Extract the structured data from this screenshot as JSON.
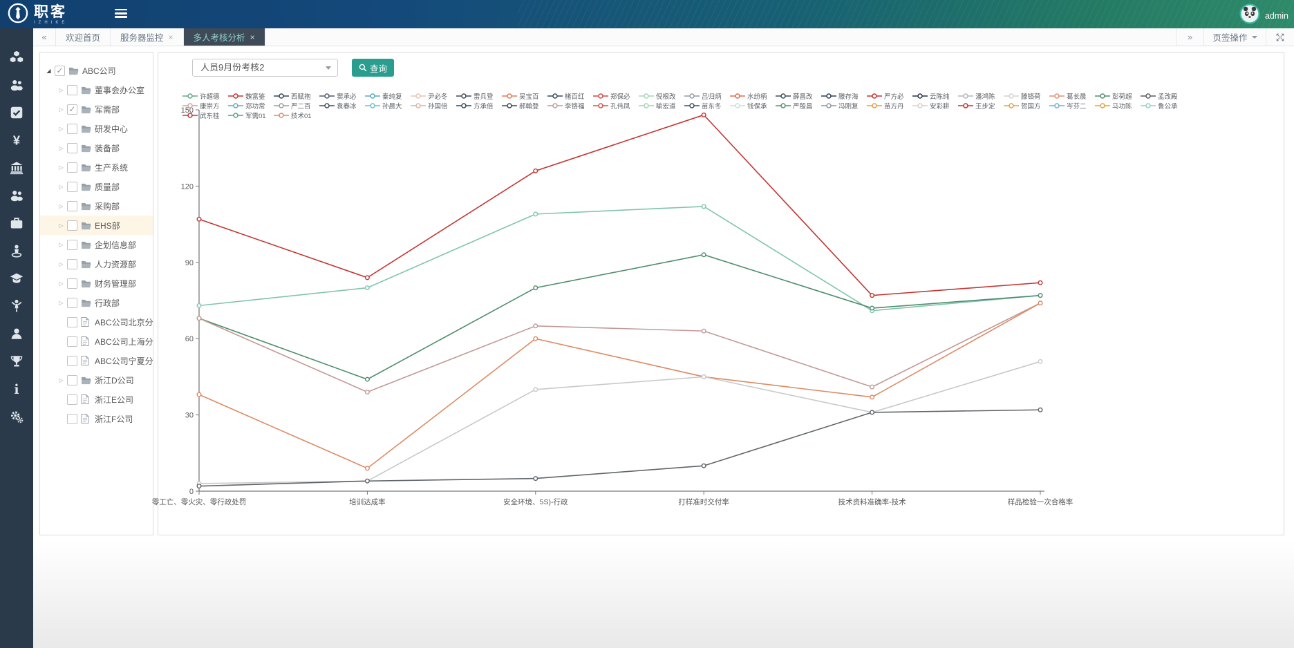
{
  "navbar": {
    "logo_text": "职客",
    "logo_sub": "IZHIKE",
    "username": "admin"
  },
  "tabbar": {
    "back_label": "«",
    "forward_label": "»",
    "tabs": [
      {
        "label": "欢迎首页",
        "closable": false,
        "active": false
      },
      {
        "label": "服务器监控",
        "closable": true,
        "active": false
      },
      {
        "label": "多人考核分析",
        "closable": true,
        "active": true
      }
    ],
    "operations_label": "页签操作"
  },
  "sidebar": {
    "icons": [
      "modules-icon",
      "team-icon",
      "tasks-icon",
      "finance-icon",
      "organization-icon",
      "members-icon",
      "briefcase-icon",
      "street-view-icon",
      "training-icon",
      "activity-icon",
      "user-icon",
      "trophy-icon",
      "info-icon",
      "settings-icon"
    ]
  },
  "tree": {
    "items": [
      {
        "label": "ABC公司",
        "type": "folder",
        "arrow": "expanded",
        "checked": true,
        "highlighted": false,
        "level": 0
      },
      {
        "label": "董事会办公室",
        "type": "folder",
        "arrow": "collapsed",
        "checked": false,
        "highlighted": false,
        "level": 1
      },
      {
        "label": "军需部",
        "type": "folder",
        "arrow": "collapsed",
        "checked": true,
        "highlighted": false,
        "level": 1
      },
      {
        "label": "研发中心",
        "type": "folder",
        "arrow": "collapsed",
        "checked": false,
        "highlighted": false,
        "level": 1
      },
      {
        "label": "装备部",
        "type": "folder",
        "arrow": "collapsed",
        "checked": false,
        "highlighted": false,
        "level": 1
      },
      {
        "label": "生产系统",
        "type": "folder",
        "arrow": "collapsed",
        "checked": false,
        "highlighted": false,
        "level": 1
      },
      {
        "label": "质量部",
        "type": "folder",
        "arrow": "collapsed",
        "checked": false,
        "highlighted": false,
        "level": 1
      },
      {
        "label": "采购部",
        "type": "folder",
        "arrow": "collapsed",
        "checked": false,
        "highlighted": false,
        "level": 1
      },
      {
        "label": "EHS部",
        "type": "folder",
        "arrow": "collapsed",
        "checked": false,
        "highlighted": true,
        "level": 1
      },
      {
        "label": "企划信息部",
        "type": "folder",
        "arrow": "collapsed",
        "checked": false,
        "highlighted": false,
        "level": 1
      },
      {
        "label": "人力资源部",
        "type": "folder",
        "arrow": "collapsed",
        "checked": false,
        "highlighted": false,
        "level": 1
      },
      {
        "label": "财务管理部",
        "type": "folder",
        "arrow": "collapsed",
        "checked": false,
        "highlighted": false,
        "level": 1
      },
      {
        "label": "行政部",
        "type": "folder",
        "arrow": "collapsed",
        "checked": false,
        "highlighted": false,
        "level": 1
      },
      {
        "label": "ABC公司北京分公司",
        "type": "file",
        "arrow": "none",
        "checked": false,
        "highlighted": false,
        "level": 1
      },
      {
        "label": "ABC公司上海分公司",
        "type": "file",
        "arrow": "none",
        "checked": false,
        "highlighted": false,
        "level": 1
      },
      {
        "label": "ABC公司宁夏分公司",
        "type": "file",
        "arrow": "none",
        "checked": false,
        "highlighted": false,
        "level": 1
      },
      {
        "label": "浙江D公司",
        "type": "folder",
        "arrow": "collapsed",
        "checked": false,
        "highlighted": false,
        "level": 1
      },
      {
        "label": "浙江E公司",
        "type": "file",
        "arrow": "none",
        "checked": false,
        "highlighted": false,
        "level": 1
      },
      {
        "label": "浙江F公司",
        "type": "file",
        "arrow": "none",
        "checked": false,
        "highlighted": false,
        "level": 1
      }
    ]
  },
  "toolbar": {
    "select_value": "人员9月份考核2",
    "query_label": "查询"
  },
  "colors": {
    "accent": "#2a9d8f",
    "sidebar_bg": "#2b3a4a",
    "active_tab_bg": "#3e4a58",
    "highlight_row": "#fdf5e6"
  },
  "chart_data": {
    "type": "line",
    "categories": [
      "零工亡、零火灾、零行政处罚",
      "培训达成率",
      "安全环境、5S)-行政",
      "打样准时交付率",
      "技术资料准确率-技术",
      "样品检验一次合格率"
    ],
    "ylim": [
      0,
      150
    ],
    "yticks": [
      0,
      30,
      60,
      90,
      120,
      150
    ],
    "grid": false,
    "legend_position": "top",
    "legend": [
      {
        "name": "许超德",
        "color": "#5fa87f"
      },
      {
        "name": "魏富鉴",
        "color": "#c23531"
      },
      {
        "name": "西赋抱",
        "color": "#2f4554"
      },
      {
        "name": "窦承必",
        "color": "#4c5a6b"
      },
      {
        "name": "秦纯复",
        "color": "#5aa7c0"
      },
      {
        "name": "尹必冬",
        "color": "#e6c3b5"
      },
      {
        "name": "雷兵登",
        "color": "#3c4858"
      },
      {
        "name": "吴宝百",
        "color": "#e0795a"
      },
      {
        "name": "楮百红",
        "color": "#33465a"
      },
      {
        "name": "郑保必",
        "color": "#cf4a43"
      },
      {
        "name": "倪根改",
        "color": "#a8d5b5"
      },
      {
        "name": "吕归炳",
        "color": "#8f9aa3"
      },
      {
        "name": "水纷柄",
        "color": "#dd6b4d"
      },
      {
        "name": "薛昌改",
        "color": "#3a4a5c"
      },
      {
        "name": "滕存海",
        "color": "#2c3e50"
      },
      {
        "name": "严方必",
        "color": "#c9302c"
      },
      {
        "name": "云陈纯",
        "color": "#243447"
      },
      {
        "name": "潘鸿陈",
        "color": "#b0b6bc"
      },
      {
        "name": "滕铬荷",
        "color": "#d3d3d3"
      },
      {
        "name": "葛长晨",
        "color": "#e2906c"
      },
      {
        "name": "彭荷超",
        "color": "#4e8d6c"
      },
      {
        "name": "孟改殿",
        "color": "#5a5a5a"
      },
      {
        "name": "康崇方",
        "color": "#cfa49e"
      },
      {
        "name": "郑功常",
        "color": "#57aebf"
      },
      {
        "name": "严二百",
        "color": "#9b9b9b"
      },
      {
        "name": "袁春冰",
        "color": "#3f4d5e"
      },
      {
        "name": "孙晨大",
        "color": "#6cbfcf"
      },
      {
        "name": "孙国倍",
        "color": "#dcb3ab"
      },
      {
        "name": "方承倍",
        "color": "#31485c"
      },
      {
        "name": "郝翰登",
        "color": "#3c4858"
      },
      {
        "name": "李铬福",
        "color": "#c29996"
      },
      {
        "name": "孔伟凤",
        "color": "#d2524c"
      },
      {
        "name": "喻宏道",
        "color": "#a3d4b2"
      },
      {
        "name": "苗东冬",
        "color": "#35516b"
      },
      {
        "name": "钱保承",
        "color": "#c2e2da"
      },
      {
        "name": "严殷昌",
        "color": "#4e9468"
      },
      {
        "name": "冯刚复",
        "color": "#8e989f"
      },
      {
        "name": "苗方丹",
        "color": "#e2a23c"
      },
      {
        "name": "安彩耕",
        "color": "#d8cfc9"
      },
      {
        "name": "王步定",
        "color": "#c9302c"
      },
      {
        "name": "贺国方",
        "color": "#e0a43e"
      },
      {
        "name": "岑芬二",
        "color": "#66b6c9"
      },
      {
        "name": "马功陈",
        "color": "#e2a23c"
      },
      {
        "name": "鲁公承",
        "color": "#8fd0c6"
      },
      {
        "name": "武东桂",
        "color": "#c23531"
      },
      {
        "name": "军需01",
        "color": "#4fa48a"
      },
      {
        "name": "技术01",
        "color": "#dd8a63"
      }
    ],
    "series": [
      {
        "name": "line-red",
        "color": "#c23531",
        "values": [
          107,
          84,
          126,
          148,
          77,
          82
        ]
      },
      {
        "name": "line-teal",
        "color": "#7fc4ae",
        "values": [
          73,
          80,
          109,
          112,
          71,
          77
        ]
      },
      {
        "name": "line-green",
        "color": "#4e8d6c",
        "values": [
          68,
          44,
          80,
          93,
          72,
          77
        ]
      },
      {
        "name": "line-rosybrown",
        "color": "#c29996",
        "values": [
          68,
          39,
          65,
          63,
          41,
          74
        ]
      },
      {
        "name": "line-orange",
        "color": "#dd8a63",
        "values": [
          38,
          9,
          60,
          45,
          37,
          74
        ]
      },
      {
        "name": "line-lightgray",
        "color": "#c9c9c9",
        "values": [
          3,
          4,
          40,
          45,
          31,
          51
        ]
      },
      {
        "name": "line-darkgray",
        "color": "#5f6569",
        "values": [
          2,
          4,
          5,
          10,
          31,
          32
        ]
      }
    ]
  }
}
